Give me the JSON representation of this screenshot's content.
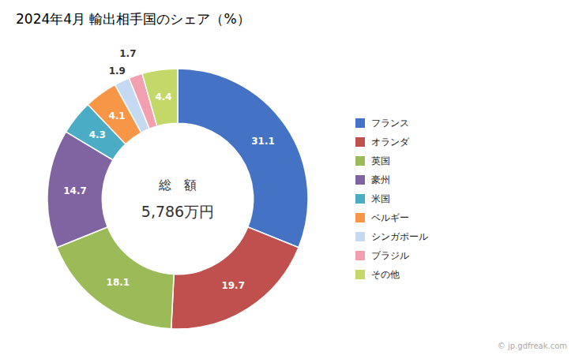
{
  "chart_data": {
    "type": "donut",
    "title": "2024年4月 輸出相手国のシェア（%）",
    "categories": [
      "フランス",
      "オランダ",
      "英国",
      "豪州",
      "米国",
      "ベルギー",
      "シンガポール",
      "ブラジル",
      "その他"
    ],
    "values": [
      31.1,
      19.7,
      18.1,
      14.7,
      4.3,
      4.1,
      1.9,
      1.7,
      4.4
    ],
    "colors": [
      "#4472c4",
      "#c0504d",
      "#9bbb59",
      "#8064a2",
      "#4bacc6",
      "#f79646",
      "#c5d9f1",
      "#f2a0b0",
      "#c4d86a"
    ],
    "data_labels": true,
    "legend": "right",
    "center_text": [
      "総　額",
      "5,786万円"
    ],
    "watermark": "© jp.gdfreak.com"
  }
}
